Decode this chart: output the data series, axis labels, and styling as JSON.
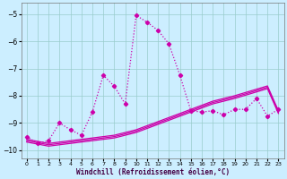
{
  "xlabel": "Windchill (Refroidissement éolien,°C)",
  "xlim": [
    -0.5,
    23.5
  ],
  "ylim": [
    -10.3,
    -4.6
  ],
  "yticks": [
    -10,
    -9,
    -8,
    -7,
    -6,
    -5
  ],
  "xticks": [
    0,
    1,
    2,
    3,
    4,
    5,
    6,
    7,
    8,
    9,
    10,
    11,
    12,
    13,
    14,
    15,
    16,
    17,
    18,
    19,
    20,
    21,
    22,
    23
  ],
  "bg_color": "#cceeff",
  "grid_color": "#99cccc",
  "line_color": "#cc00aa",
  "curve1_x": [
    0,
    1,
    2,
    3,
    4,
    5,
    6,
    7,
    8,
    9,
    10,
    11,
    12,
    13,
    14,
    15,
    16,
    17,
    18,
    19,
    20,
    21,
    22,
    23
  ],
  "curve1_y": [
    -9.5,
    -9.75,
    -9.65,
    -9.0,
    -9.25,
    -9.45,
    -8.6,
    -7.25,
    -7.65,
    -8.3,
    -5.05,
    -5.3,
    -5.6,
    -6.1,
    -7.25,
    -8.55,
    -8.6,
    -8.55,
    -8.7,
    -8.5,
    -8.5,
    -8.1,
    -8.75,
    -8.5
  ],
  "curve2_x": [
    0,
    2,
    3,
    4,
    5,
    6,
    7,
    8,
    9,
    10,
    11,
    12,
    13,
    14,
    15,
    16,
    17,
    18,
    19,
    20,
    21,
    22,
    23
  ],
  "curve2_y": [
    -9.6,
    -9.75,
    -9.7,
    -9.65,
    -9.6,
    -9.55,
    -9.5,
    -9.45,
    -9.35,
    -9.25,
    -9.1,
    -8.95,
    -8.8,
    -8.65,
    -8.5,
    -8.35,
    -8.2,
    -8.1,
    -8.0,
    -7.88,
    -7.76,
    -7.64,
    -8.55
  ],
  "curve3_x": [
    0,
    2,
    3,
    4,
    5,
    6,
    7,
    8,
    9,
    10,
    11,
    12,
    13,
    14,
    15,
    16,
    17,
    18,
    19,
    20,
    21,
    22,
    23
  ],
  "curve3_y": [
    -9.65,
    -9.8,
    -9.75,
    -9.7,
    -9.65,
    -9.6,
    -9.55,
    -9.5,
    -9.4,
    -9.3,
    -9.15,
    -9.0,
    -8.85,
    -8.7,
    -8.55,
    -8.4,
    -8.25,
    -8.15,
    -8.05,
    -7.93,
    -7.81,
    -7.69,
    -8.6
  ],
  "curve4_x": [
    0,
    2,
    3,
    4,
    5,
    6,
    7,
    8,
    9,
    10,
    11,
    12,
    13,
    14,
    15,
    16,
    17,
    18,
    19,
    20,
    21,
    22,
    23
  ],
  "curve4_y": [
    -9.7,
    -9.85,
    -9.8,
    -9.75,
    -9.7,
    -9.65,
    -9.6,
    -9.55,
    -9.45,
    -9.35,
    -9.2,
    -9.05,
    -8.9,
    -8.75,
    -8.6,
    -8.45,
    -8.3,
    -8.2,
    -8.1,
    -7.98,
    -7.86,
    -7.74,
    -8.65
  ]
}
